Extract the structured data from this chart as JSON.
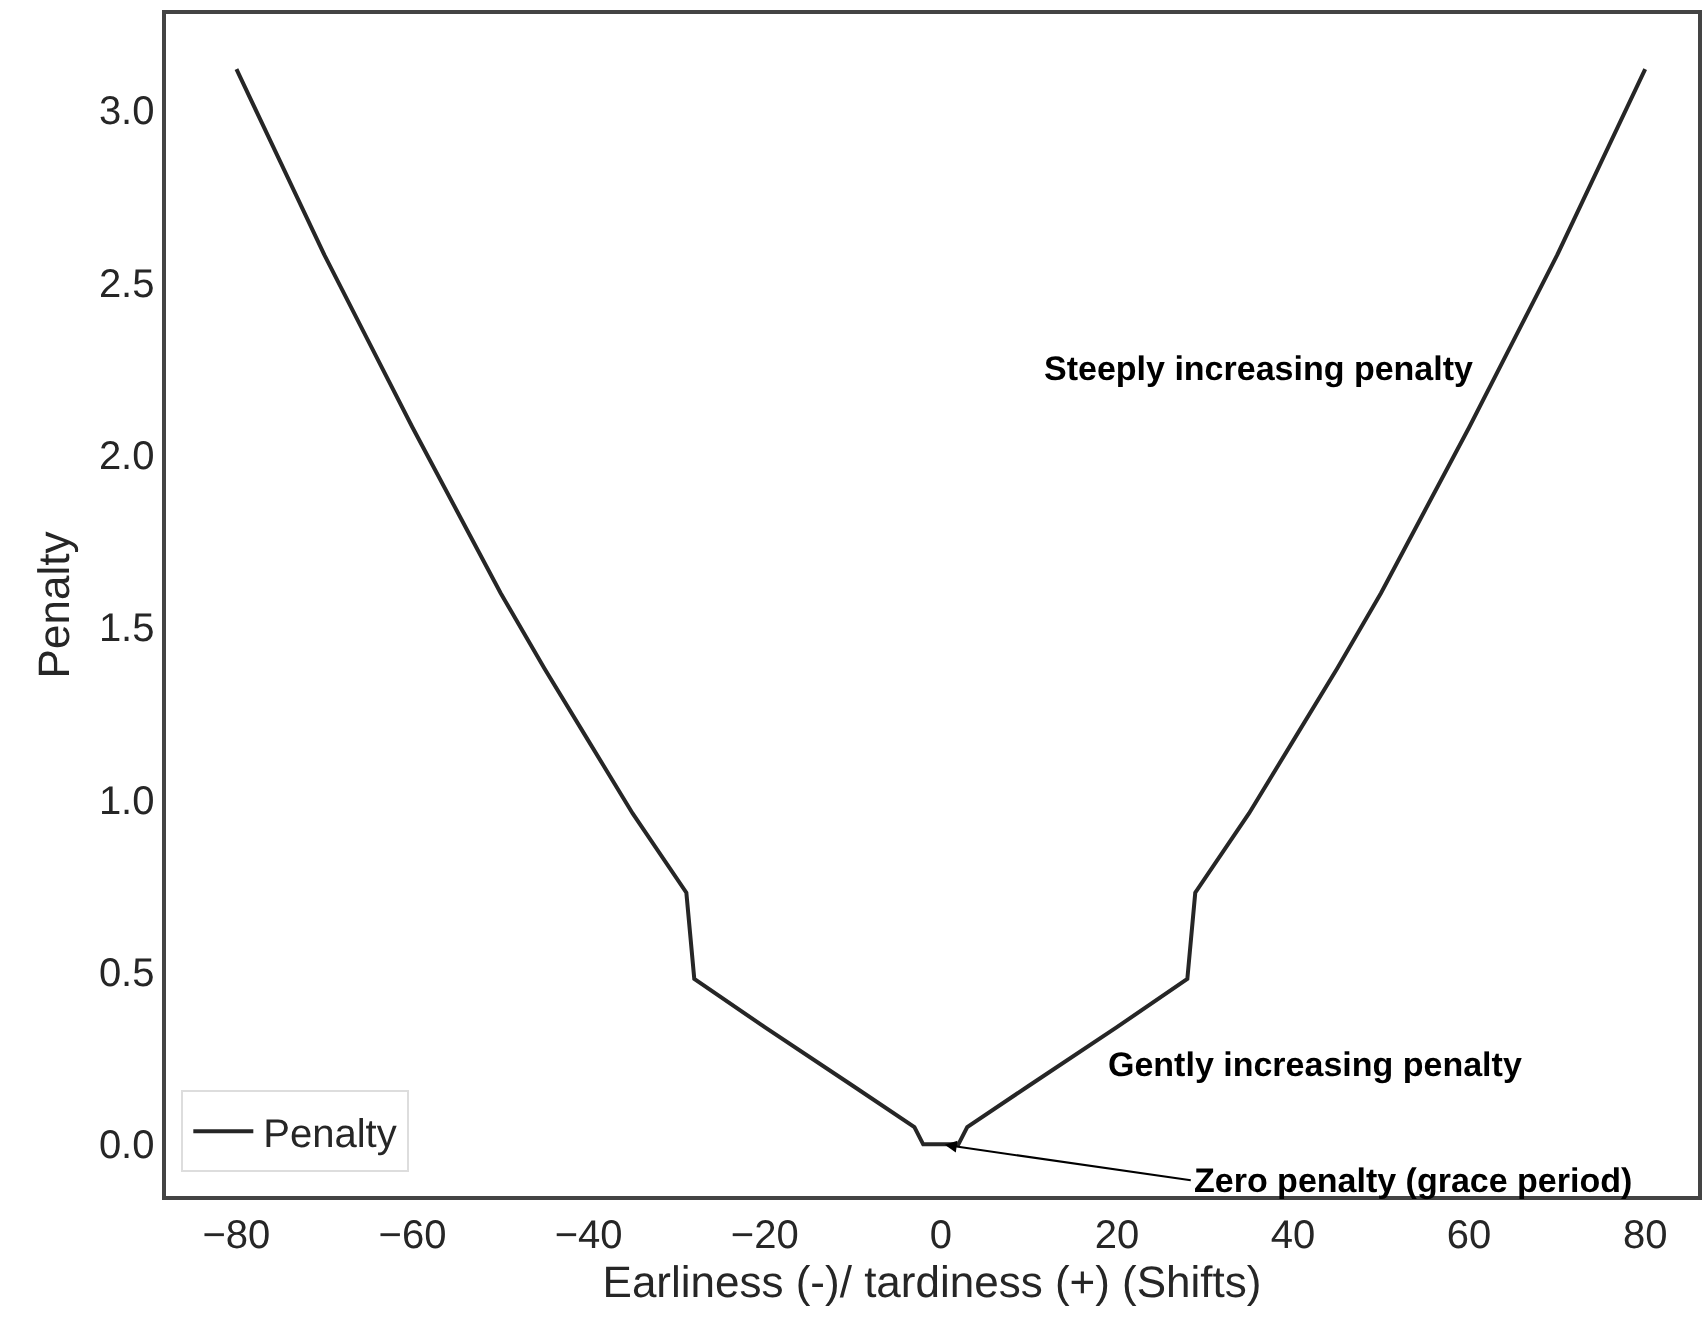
{
  "chart_data": {
    "type": "line",
    "xlabel": "Earliness (-)/ tardiness (+) (Shifts)",
    "ylabel": "Penalty",
    "series": [
      {
        "name": "Penalty",
        "color": "#262626",
        "x": [
          -80,
          -75,
          -70,
          -65,
          -60,
          -55,
          -50,
          -45,
          -40,
          -35,
          -28.9,
          -28,
          -20,
          -10,
          -3,
          -2,
          2,
          3,
          10,
          20,
          28,
          28.9,
          35,
          40,
          45,
          50,
          55,
          60,
          65,
          70,
          75,
          80
        ],
        "values": [
          3.12,
          2.85,
          2.58,
          2.33,
          2.08,
          1.84,
          1.6,
          1.38,
          1.17,
          0.96,
          0.73,
          0.48,
          0.34,
          0.17,
          0.05,
          0.0,
          0.0,
          0.05,
          0.17,
          0.34,
          0.48,
          0.73,
          0.96,
          1.17,
          1.38,
          1.6,
          1.84,
          2.08,
          2.33,
          2.58,
          2.85,
          3.12
        ]
      }
    ],
    "xlim": [
      -88,
      86
    ],
    "xticks": [
      -80,
      -60,
      -40,
      -20,
      0,
      20,
      40,
      60,
      80
    ],
    "ylim": [
      -0.15,
      3.28
    ],
    "yticks": [
      {
        "value": 0,
        "label": "0.0"
      },
      0.5,
      {
        "value": 1,
        "label": "1.0"
      },
      1.5,
      {
        "value": 2,
        "label": "2.0"
      },
      2.5,
      {
        "value": 3,
        "label": "3.0"
      }
    ],
    "annotations": [
      "Steeply increasing penalty",
      "Gently increasing penalty",
      {
        "text": "Zero penalty (grace period)",
        "x": 0,
        "y": 0
      }
    ],
    "legend": "bottom left",
    "line_style": "solid",
    "marker": "none"
  }
}
